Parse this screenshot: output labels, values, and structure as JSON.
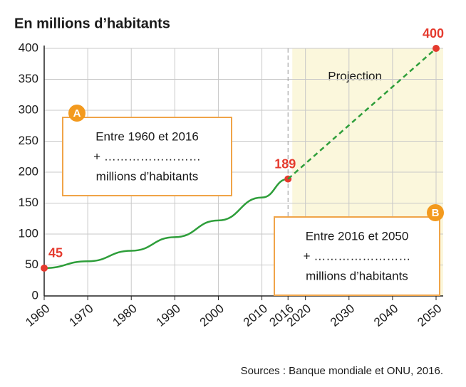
{
  "chart_data": {
    "type": "line",
    "title": "En millions d’habitants",
    "x": [],
    "series": [
      {
        "color": "#2e9e3a",
        "dash": false,
        "x": [
          1960,
          1970,
          1980,
          1990,
          2000,
          2010,
          2016
        ],
        "values": [
          45,
          56,
          73,
          95,
          122,
          159,
          189
        ]
      },
      {
        "color": "#2e9e3a",
        "dash": true,
        "x": [
          2016,
          2050
        ],
        "values": [
          189,
          400
        ]
      }
    ],
    "point_color": "#e53a2e",
    "xlim": [
      1960,
      2050
    ],
    "xticks": [
      1960,
      1970,
      1980,
      1990,
      2000,
      2010,
      2016,
      2020,
      2030,
      2040,
      2050
    ],
    "ylim": [
      0,
      400
    ],
    "yticks": [
      0,
      50,
      100,
      150,
      200,
      250,
      300,
      350,
      400
    ],
    "grid": true,
    "projection": {
      "label": "Projection",
      "start": 2016,
      "end": 2050
    },
    "annotations": [
      {
        "letter": "A",
        "lines": [
          "Entre 1960 et 2016",
          "+ ……………………",
          "millions d’habitants"
        ]
      },
      {
        "letter": "B",
        "lines": [
          "Entre 2016 et 2050",
          "+ ……………………",
          "millions d’habitants"
        ]
      }
    ],
    "source": "Sources : Banque mondiale et ONU, 2016."
  }
}
